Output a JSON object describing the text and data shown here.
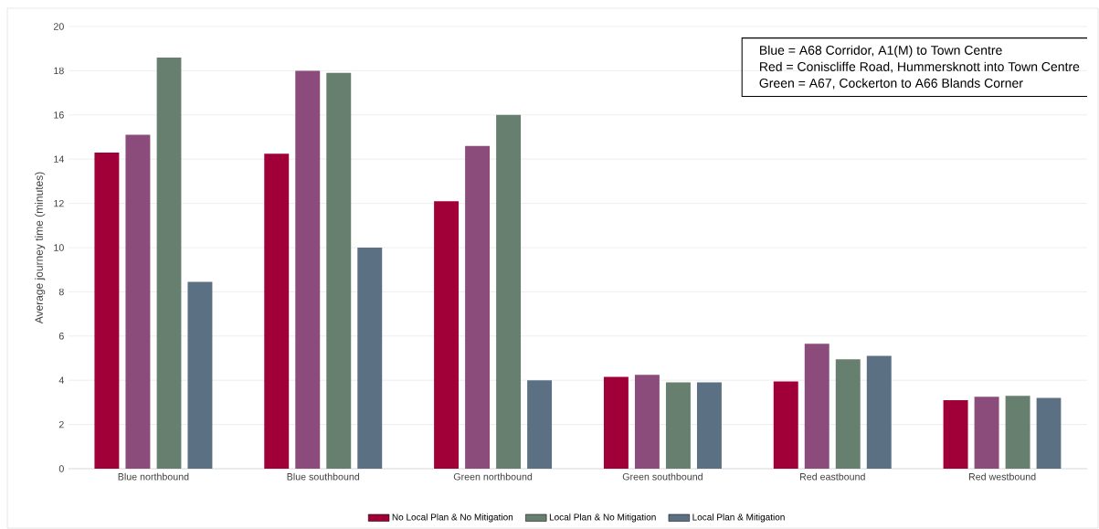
{
  "chart_data": {
    "type": "bar",
    "ylabel": "Average journey time (minutes)",
    "categories": [
      "Blue northbound",
      "Blue southbound",
      "Green northbound",
      "Green southbound",
      "Red eastbound",
      "Red westbound"
    ],
    "series": [
      {
        "name": "No Local Plan & No Mitigation",
        "color": "#a00037",
        "values": [
          14.3,
          14.25,
          12.1,
          4.15,
          3.95,
          3.1
        ]
      },
      {
        "color": "#8b4c7c",
        "values": [
          15.1,
          18.0,
          14.6,
          4.25,
          5.65,
          3.25
        ]
      },
      {
        "name": "Local Plan & No Mitigation",
        "color": "#677f6e",
        "values": [
          18.6,
          17.9,
          16.0,
          3.9,
          4.95,
          3.3
        ]
      },
      {
        "name": "Local Plan & Mitigation",
        "color": "#5b7083",
        "values": [
          8.45,
          10.0,
          4.0,
          3.9,
          5.1,
          3.2
        ]
      }
    ],
    "ylim": [
      0,
      20
    ],
    "yticks": [
      0,
      2,
      4,
      6,
      8,
      10,
      12,
      14,
      16,
      18,
      20
    ],
    "grid": "y",
    "legend": "bottom",
    "annotations": [
      "Blue = A68 Corridor,  A1(M) to Town Centre",
      "Red = Coniscliffe Road, Hummersknott into Town Centre",
      "Green = A67, Cockerton to A66 Blands Corner"
    ]
  }
}
